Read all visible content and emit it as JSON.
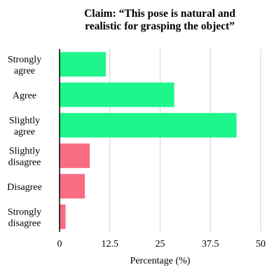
{
  "chart_data": {
    "type": "bar",
    "orientation": "horizontal",
    "title": "Claim: “This pose is natural and realistic for grasping the object”",
    "title_lines": [
      "Claim: “This pose is natural and",
      "realistic for grasping the object”"
    ],
    "xlabel": "Percentage (%)",
    "ylabel": "",
    "xlim": [
      0,
      50
    ],
    "xticks": [
      0,
      12.5,
      25,
      37.5,
      50
    ],
    "xtick_labels": [
      "0",
      "12.5",
      "25",
      "37.5",
      "50"
    ],
    "grid": "vertical",
    "categories": [
      {
        "label": [
          "Strongly",
          "agree"
        ],
        "value": 11.5,
        "color": "#1ef58a"
      },
      {
        "label": [
          "Agree"
        ],
        "value": 28.5,
        "color": "#1ef58a"
      },
      {
        "label": [
          "Slightly",
          "agree"
        ],
        "value": 44.0,
        "color": "#1ef58a"
      },
      {
        "label": [
          "Slightly",
          "disagree"
        ],
        "value": 7.5,
        "color": "#fa6c82"
      },
      {
        "label": [
          "Disagree"
        ],
        "value": 6.3,
        "color": "#fa6c82"
      },
      {
        "label": [
          "Strongly",
          "disagree"
        ],
        "value": 1.5,
        "color": "#fa6c82"
      }
    ]
  }
}
